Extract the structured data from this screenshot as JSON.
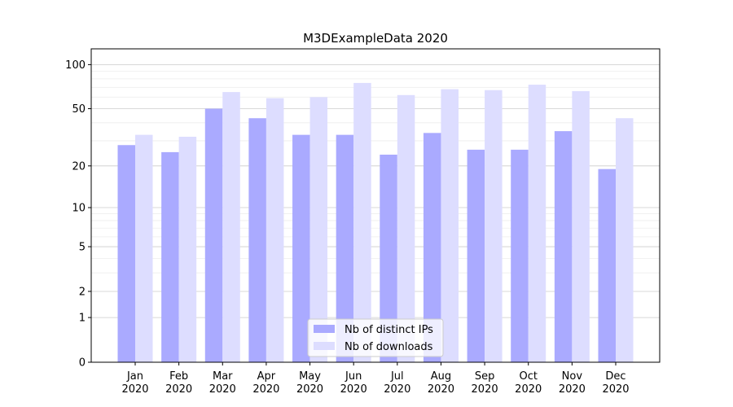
{
  "chart_data": {
    "type": "bar",
    "title": "M3DExampleData 2020",
    "xlabel": "",
    "ylabel": "",
    "y_scale": "log10(1+y)",
    "ylim": [
      0,
      128
    ],
    "yticks": [
      0,
      1,
      2,
      5,
      10,
      20,
      50,
      100
    ],
    "grid": true,
    "legend_placement": "bottom-center",
    "categories": [
      "Jan 2020",
      "Feb 2020",
      "Mar 2020",
      "Apr 2020",
      "May 2020",
      "Jun 2020",
      "Jul 2020",
      "Aug 2020",
      "Sep 2020",
      "Oct 2020",
      "Nov 2020",
      "Dec 2020"
    ],
    "category_months": [
      "Jan",
      "Feb",
      "Mar",
      "Apr",
      "May",
      "Jun",
      "Jul",
      "Aug",
      "Sep",
      "Oct",
      "Nov",
      "Dec"
    ],
    "category_year": "2020",
    "series": [
      {
        "name": "Nb of distinct IPs",
        "color": "#aaaaff",
        "values": [
          28,
          25,
          50,
          43,
          33,
          33,
          24,
          34,
          26,
          26,
          35,
          19
        ]
      },
      {
        "name": "Nb of downloads",
        "color": "#ddddff",
        "values": [
          33,
          32,
          65,
          59,
          60,
          75,
          62,
          68,
          67,
          73,
          66,
          43
        ]
      }
    ]
  }
}
